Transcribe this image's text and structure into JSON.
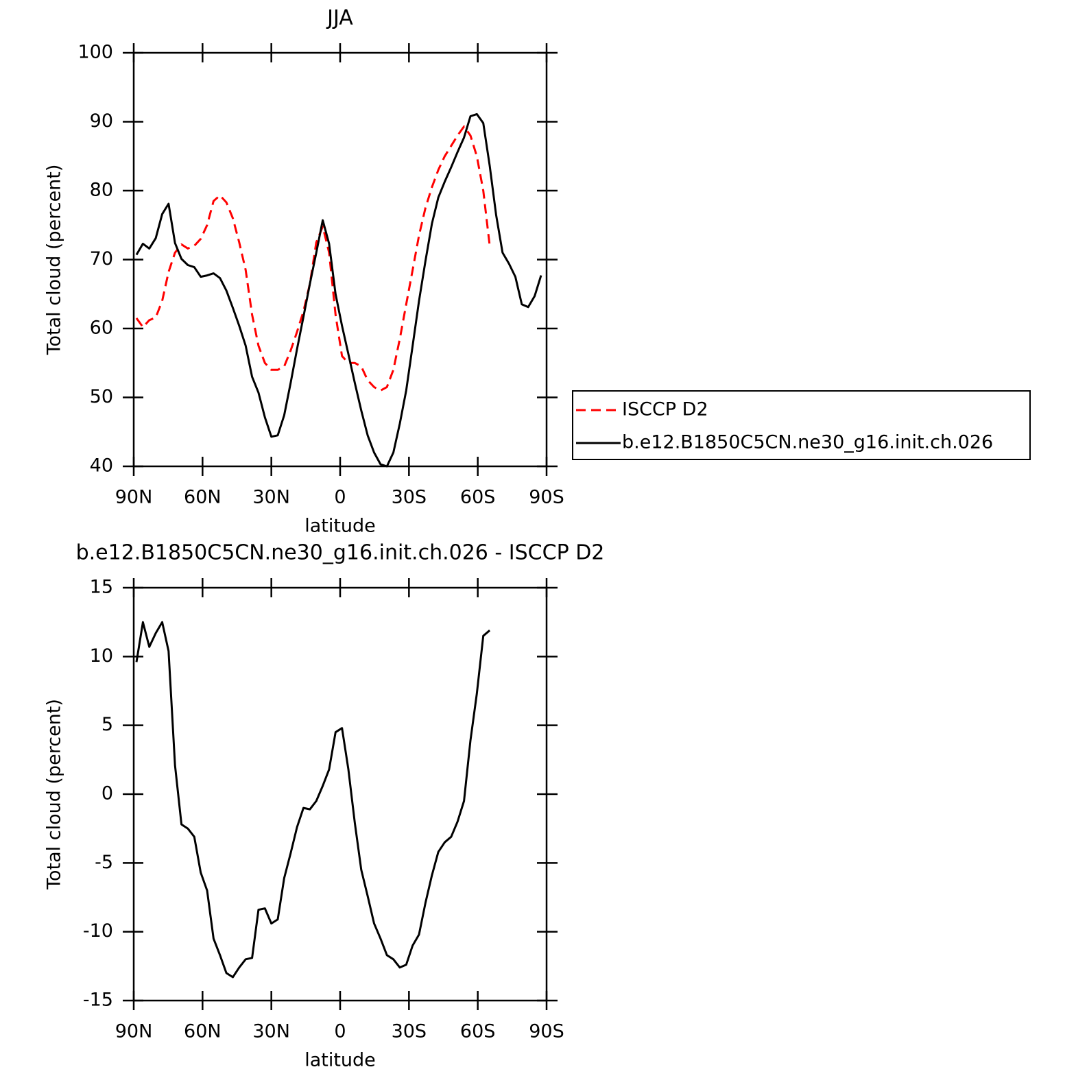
{
  "chart_data": [
    {
      "type": "line",
      "title": "JJA",
      "xlabel": "latitude",
      "ylabel": "Total cloud (percent)",
      "x": [
        88.8,
        86.0,
        83.2,
        80.4,
        77.6,
        74.8,
        72.0,
        69.2,
        66.4,
        63.6,
        60.8,
        58.0,
        55.2,
        52.4,
        49.6,
        46.8,
        44.0,
        41.2,
        38.4,
        35.6,
        32.8,
        30.0,
        27.2,
        24.4,
        21.6,
        18.8,
        16.0,
        13.2,
        10.4,
        7.6,
        4.8,
        2.0,
        -0.8,
        -3.6,
        -6.4,
        -9.2,
        -12.0,
        -14.8,
        -17.6,
        -20.4,
        -23.2,
        -26.0,
        -28.8,
        -31.6,
        -34.4,
        -37.2,
        -40.0,
        -42.8,
        -45.6,
        -48.4,
        -51.2,
        -54.0,
        -56.8,
        -59.6,
        -62.4,
        -65.2,
        -68.0,
        -70.8,
        -73.6,
        -76.4,
        -79.2,
        -82.0,
        -84.8,
        -87.6
      ],
      "series": [
        {
          "name": "ISCCP D2",
          "color": "#ff0000",
          "dashed": true,
          "values": [
            61.5,
            60.2,
            61.2,
            61.6,
            64.0,
            68.2,
            71.0,
            72.2,
            71.6,
            72.0,
            73.0,
            75.0,
            78.5,
            79.3,
            78.3,
            76.0,
            72.5,
            68.5,
            62.0,
            57.5,
            55.0,
            54.0,
            54.0,
            54.5,
            56.8,
            59.5,
            62.5,
            66.5,
            72.5,
            74.8,
            71.0,
            62.0,
            56.0,
            55.0,
            55.0,
            54.5,
            52.5,
            51.5,
            51.0,
            51.5,
            54.0,
            58.5,
            63.5,
            68.5,
            73.5,
            77.5,
            80.5,
            83.0,
            85.0,
            86.5,
            88.0,
            89.3,
            88.0,
            85.0,
            80.0,
            72.0,
            null,
            null,
            null,
            null,
            null,
            null,
            null,
            null
          ]
        },
        {
          "name": "b.e12.B1850C5CN.ne30_g16.init.ch.026",
          "color": "#000000",
          "dashed": false,
          "values": [
            70.7,
            72.3,
            71.6,
            73.1,
            76.6,
            78.1,
            72.4,
            70.1,
            69.2,
            68.9,
            67.5,
            67.7,
            68.0,
            67.3,
            65.5,
            63.0,
            60.4,
            57.5,
            53.0,
            50.7,
            47.1,
            44.3,
            44.5,
            47.4,
            52.1,
            57.0,
            61.7,
            66.5,
            71.0,
            75.7,
            72.3,
            65.0,
            60.4,
            56.3,
            52.1,
            48.1,
            44.5,
            42.0,
            40.3,
            40.0,
            42.0,
            46.2,
            51.0,
            57.5,
            64.0,
            69.8,
            75.2,
            79.0,
            81.3,
            83.4,
            85.6,
            87.7,
            90.8,
            91.1,
            89.8,
            83.6,
            76.5,
            71.0,
            69.4,
            67.5,
            63.5,
            63.1,
            64.7,
            67.7
          ]
        }
      ],
      "xlim": [
        90,
        -90
      ],
      "ylim": [
        40,
        100
      ],
      "xticks": [
        {
          "value": 90,
          "label": "90N"
        },
        {
          "value": 60,
          "label": "60N"
        },
        {
          "value": 30,
          "label": "30N"
        },
        0,
        {
          "value": -30,
          "label": "30S"
        },
        {
          "value": -60,
          "label": "60S"
        },
        {
          "value": -90,
          "label": "90S"
        }
      ],
      "yticks": [
        40,
        50,
        60,
        70,
        80,
        90,
        100
      ],
      "legend": "right"
    },
    {
      "type": "line",
      "title": "b.e12.B1850C5CN.ne30_g16.init.ch.026 - ISCCP D2",
      "xlabel": "latitude",
      "ylabel": "Total cloud (percent)",
      "x": [
        88.8,
        86.0,
        83.2,
        80.4,
        77.6,
        74.8,
        72.0,
        69.2,
        66.4,
        63.6,
        60.8,
        58.0,
        55.2,
        52.4,
        49.6,
        46.8,
        44.0,
        41.2,
        38.4,
        35.6,
        32.8,
        30.0,
        27.2,
        24.4,
        21.6,
        18.8,
        16.0,
        13.2,
        10.4,
        7.6,
        4.8,
        2.0,
        -0.8,
        -3.6,
        -6.4,
        -9.2,
        -12.0,
        -14.8,
        -17.6,
        -20.4,
        -23.2,
        -26.0,
        -28.8,
        -31.6,
        -34.4,
        -37.2,
        -40.0,
        -42.8,
        -45.6,
        -48.4,
        -51.2,
        -54.0,
        -56.8,
        -59.6,
        -62.4,
        -65.2
      ],
      "series": [
        {
          "color": "#000000",
          "dashed": false,
          "values": [
            9.6,
            12.5,
            10.7,
            11.7,
            12.5,
            10.4,
            2.1,
            -2.2,
            -2.5,
            -3.1,
            -5.7,
            -7.0,
            -10.5,
            -11.7,
            -13.0,
            -13.3,
            -12.6,
            -12.0,
            -11.9,
            -8.4,
            -8.3,
            -9.4,
            -9.1,
            -6.1,
            -4.3,
            -2.4,
            -1.0,
            -1.1,
            -0.5,
            0.6,
            1.8,
            4.5,
            4.8,
            1.8,
            -2.1,
            -5.5,
            -7.4,
            -9.4,
            -10.5,
            -11.7,
            -12.0,
            -12.6,
            -12.4,
            -11.0,
            -10.2,
            -7.9,
            -5.9,
            -4.2,
            -3.5,
            -3.1,
            -2.0,
            -0.5,
            3.9,
            7.3,
            11.5,
            11.9
          ]
        }
      ],
      "xlim": [
        90,
        -90
      ],
      "ylim": [
        -15,
        15
      ],
      "xticks": [
        {
          "value": 90,
          "label": "90N"
        },
        {
          "value": 60,
          "label": "60N"
        },
        {
          "value": 30,
          "label": "30N"
        },
        0,
        {
          "value": -30,
          "label": "30S"
        },
        {
          "value": -60,
          "label": "60S"
        },
        {
          "value": -90,
          "label": "90S"
        }
      ],
      "yticks": [
        -15,
        -10,
        -5,
        0,
        5,
        10,
        15
      ]
    }
  ]
}
